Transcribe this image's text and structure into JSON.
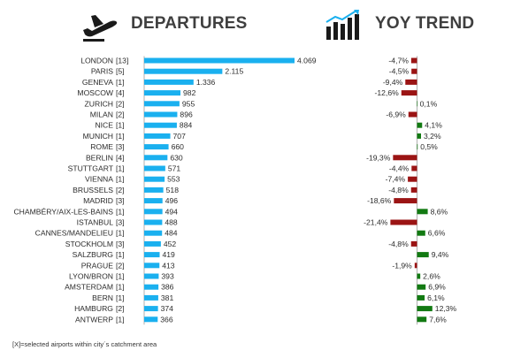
{
  "header": {
    "departures_title": "DEPARTURES",
    "trend_title": "YOY TREND",
    "departures_icon": "airplane-takeoff-icon",
    "trend_icon": "bar-chart-trend-icon"
  },
  "footnote": "[X]=selected airports within city´s catchment area",
  "colors": {
    "departures_bar": "#1ab0ef",
    "trend_positive": "#127a12",
    "trend_negative": "#9b1414",
    "text": "#2b2b2b"
  },
  "chart_data": [
    {
      "type": "bar",
      "orientation": "horizontal",
      "title": "DEPARTURES",
      "categories": [
        "LONDON",
        "PARIS",
        "GENEVA",
        "MOSCOW",
        "ZURICH",
        "MILAN",
        "NICE",
        "MUNICH",
        "ROME",
        "BERLIN",
        "STUTTGART",
        "VIENNA",
        "BRUSSELS",
        "MADRID",
        "CHAMBÉRY/AIX-LES-BAINS",
        "ISTANBUL",
        "CANNES/MANDELIEU",
        "STOCKHOLM",
        "SALZBURG",
        "PRAGUE",
        "LYON/BRON",
        "AMSTERDAM",
        "BERN",
        "HAMBURG",
        "ANTWERP"
      ],
      "airport_counts": [
        "[13]",
        "[5]",
        "[1]",
        "[4]",
        "[2]",
        "[2]",
        "[1]",
        "[1]",
        "[3]",
        "[4]",
        "[1]",
        "[1]",
        "[2]",
        "[3]",
        "[1]",
        "[3]",
        "[1]",
        "[3]",
        "[1]",
        "[2]",
        "[1]",
        "[1]",
        "[1]",
        "[2]",
        "[1]"
      ],
      "values": [
        4069,
        2115,
        1336,
        982,
        955,
        896,
        884,
        707,
        660,
        630,
        571,
        553,
        518,
        496,
        494,
        488,
        484,
        452,
        419,
        413,
        393,
        386,
        381,
        374,
        366
      ],
      "value_labels": [
        "4.069",
        "2.115",
        "1.336",
        "982",
        "955",
        "896",
        "884",
        "707",
        "660",
        "630",
        "571",
        "553",
        "518",
        "496",
        "494",
        "488",
        "484",
        "452",
        "419",
        "413",
        "393",
        "386",
        "381",
        "374",
        "366"
      ]
    },
    {
      "type": "bar",
      "orientation": "horizontal",
      "title": "YOY TREND",
      "unit": "%",
      "values": [
        -4.7,
        -4.5,
        -9.4,
        -12.6,
        0.1,
        -6.9,
        4.1,
        3.2,
        0.5,
        -19.3,
        -4.4,
        -7.4,
        -4.8,
        -18.6,
        8.6,
        -21.4,
        6.6,
        -4.8,
        9.4,
        -1.9,
        2.6,
        6.9,
        6.1,
        12.3,
        7.6
      ],
      "value_labels": [
        "-4,7%",
        "-4,5%",
        "-9,4%",
        "-12,6%",
        "0,1%",
        "-6,9%",
        "4,1%",
        "3,2%",
        "0,5%",
        "-19,3%",
        "-4,4%",
        "-7,4%",
        "-4,8%",
        "-18,6%",
        "8,6%",
        "-21,4%",
        "6,6%",
        "-4,8%",
        "9,4%",
        "-1,9%",
        "2,6%",
        "6,9%",
        "6,1%",
        "12,3%",
        "7,6%"
      ]
    }
  ]
}
